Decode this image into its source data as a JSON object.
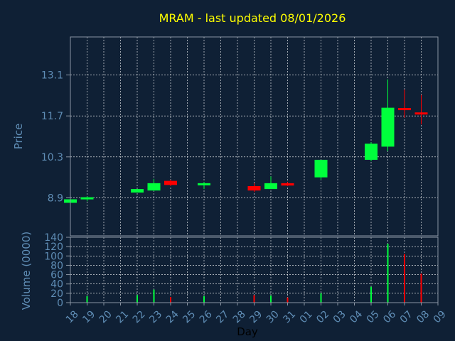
{
  "title": "MRAM - last updated 08/01/2026",
  "colors": {
    "background": "#0f2035",
    "plot_background": "#0f2035",
    "frame": "#8a95a3",
    "grid": "#ffffff",
    "axis_text": "#5f8db5",
    "title_text": "#ffff00",
    "xlabel_text": "#000000",
    "up": "#00ff3c",
    "down": "#ff0000"
  },
  "chart_data": [
    {
      "type": "candlestick",
      "ylabel": "Price",
      "ylim": [
        7.6,
        14.4
      ],
      "yticks": [
        8.9,
        10.3,
        11.7,
        13.1
      ],
      "ytick_labels": [
        "8.9",
        "10.3",
        "11.7",
        "13.1"
      ],
      "grid": true,
      "candles": [
        {
          "day": "18",
          "open": 8.73,
          "high": 8.9,
          "low": 8.73,
          "close": 8.85
        },
        {
          "day": "19",
          "open": 8.88,
          "high": 8.95,
          "low": 8.78,
          "close": 8.92
        },
        {
          "day": "22",
          "open": 9.08,
          "high": 9.2,
          "low": 9.08,
          "close": 9.2
        },
        {
          "day": "23",
          "open": 9.15,
          "high": 9.55,
          "low": 9.13,
          "close": 9.4
        },
        {
          "day": "24",
          "open": 9.48,
          "high": 9.52,
          "low": 9.3,
          "close": 9.34
        },
        {
          "day": "26",
          "open": 9.4,
          "high": 9.44,
          "low": 9.2,
          "close": 9.4
        },
        {
          "day": "29",
          "open": 9.3,
          "high": 9.4,
          "low": 9.1,
          "close": 9.15
        },
        {
          "day": "30",
          "open": 9.2,
          "high": 9.63,
          "low": 9.2,
          "close": 9.4
        },
        {
          "day": "31",
          "open": 9.4,
          "high": 9.44,
          "low": 9.3,
          "close": 9.32
        },
        {
          "day": "02",
          "open": 9.6,
          "high": 10.2,
          "low": 9.52,
          "close": 10.2
        },
        {
          "day": "05",
          "open": 10.2,
          "high": 10.8,
          "low": 10.15,
          "close": 10.75
        },
        {
          "day": "06",
          "open": 10.65,
          "high": 12.95,
          "low": 10.5,
          "close": 11.98
        },
        {
          "day": "07",
          "open": 11.97,
          "high": 12.6,
          "low": 11.64,
          "close": 11.91
        },
        {
          "day": "08",
          "open": 11.82,
          "high": 12.42,
          "low": 11.41,
          "close": 11.76
        }
      ]
    },
    {
      "type": "bar",
      "ylabel": "Volume (0000)",
      "ylim": [
        0,
        140
      ],
      "yticks": [
        0,
        20,
        40,
        60,
        80,
        100,
        120,
        140
      ],
      "ytick_labels": [
        "0",
        "20",
        "40",
        "60",
        "80",
        "100",
        "120",
        "140"
      ],
      "xlabel": "Day",
      "grid": true,
      "categories": [
        "18",
        "19",
        "20",
        "21",
        "22",
        "23",
        "24",
        "25",
        "26",
        "27",
        "28",
        "29",
        "30",
        "31",
        "01",
        "02",
        "03",
        "04",
        "05",
        "06",
        "07",
        "08",
        "09"
      ],
      "volumes": [
        {
          "day": "19",
          "value": 14,
          "direction": "up"
        },
        {
          "day": "22",
          "value": 16,
          "direction": "up"
        },
        {
          "day": "23",
          "value": 28,
          "direction": "up"
        },
        {
          "day": "24",
          "value": 12,
          "direction": "down"
        },
        {
          "day": "26",
          "value": 14,
          "direction": "up"
        },
        {
          "day": "29",
          "value": 16,
          "direction": "down"
        },
        {
          "day": "30",
          "value": 15,
          "direction": "up"
        },
        {
          "day": "31",
          "value": 11,
          "direction": "down"
        },
        {
          "day": "02",
          "value": 20,
          "direction": "up"
        },
        {
          "day": "05",
          "value": 34,
          "direction": "up"
        },
        {
          "day": "06",
          "value": 126,
          "direction": "up"
        },
        {
          "day": "07",
          "value": 104,
          "direction": "down"
        },
        {
          "day": "08",
          "value": 62,
          "direction": "down"
        }
      ]
    }
  ]
}
